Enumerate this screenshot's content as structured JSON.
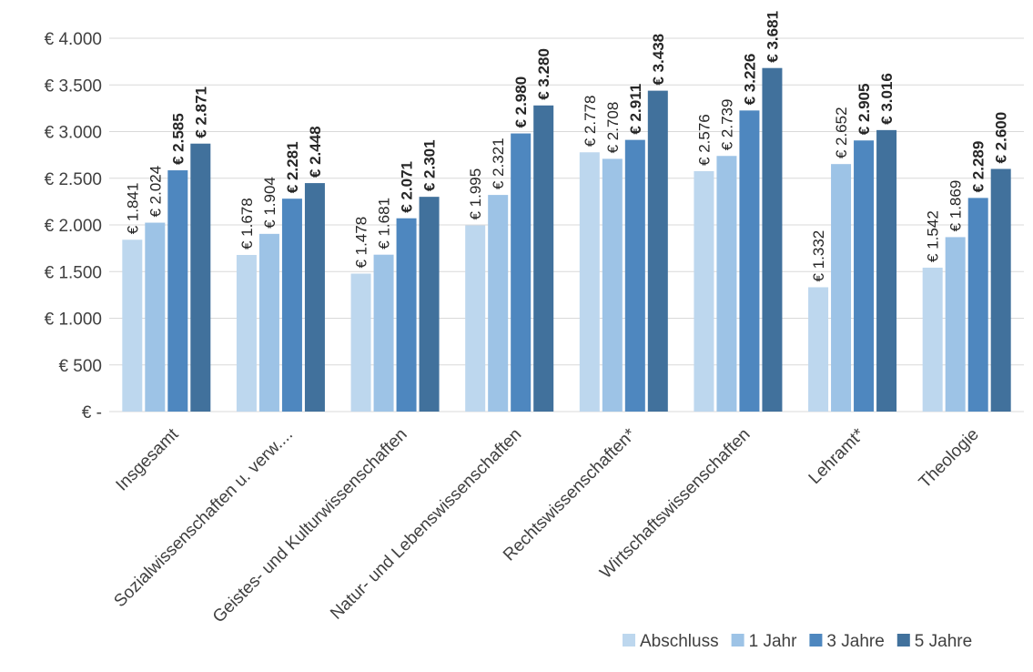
{
  "chart_data": {
    "type": "bar",
    "title": "",
    "xlabel": "",
    "ylabel": "",
    "ylim": [
      0,
      4000
    ],
    "y_ticks": [
      0,
      500,
      1000,
      1500,
      2000,
      2500,
      3000,
      3500,
      4000
    ],
    "y_tick_labels": [
      "€ -",
      "€ 500",
      "€ 1.000",
      "€ 1.500",
      "€ 2.000",
      "€ 2.500",
      "€ 3.000",
      "€ 3.500",
      "€ 4.000"
    ],
    "grid": true,
    "legend_position": "bottom-right",
    "categories": [
      "Insgesamt",
      "Sozialwissenschaften u. verw....",
      "Geistes- und Kulturwissenschaften",
      "Natur- und Lebenswissenschaften",
      "Rechtswissenschaften*",
      "Wirtschaftswissenschaften",
      "Lehramt*",
      "Theologie"
    ],
    "series": [
      {
        "name": "Abschluss",
        "color": "#BDD7EE",
        "values": [
          1841,
          1678,
          1478,
          1995,
          2778,
          2576,
          1332,
          1542
        ],
        "labels": [
          "€ 1.841",
          "€ 1.678",
          "€ 1.478",
          "€ 1.995",
          "€ 2.778",
          "€ 2.576",
          "€ 1.332",
          "€ 1.542"
        ],
        "label_bold": false
      },
      {
        "name": "1 Jahr",
        "color": "#9DC3E6",
        "values": [
          2024,
          1904,
          1681,
          2321,
          2708,
          2739,
          2652,
          1869
        ],
        "labels": [
          "€ 2.024",
          "€ 1.904",
          "€ 1.681",
          "€ 2.321",
          "€ 2.708",
          "€ 2.739",
          "€ 2.652",
          "€ 1.869"
        ],
        "label_bold": false
      },
      {
        "name": "3 Jahre",
        "color": "#4E87BF",
        "values": [
          2585,
          2281,
          2071,
          2980,
          2911,
          3226,
          2905,
          2289
        ],
        "labels": [
          "€ 2.585",
          "€ 2.281",
          "€ 2.071",
          "€ 2.980",
          "€ 2.911",
          "€ 3.226",
          "€ 2.905",
          "€ 2.289"
        ],
        "label_bold": true
      },
      {
        "name": "5 Jahre",
        "color": "#41719C",
        "values": [
          2871,
          2448,
          2301,
          3280,
          3438,
          3681,
          3016,
          2600
        ],
        "labels": [
          "€ 2.871",
          "€ 2.448",
          "€ 2.301",
          "€ 3.280",
          "€ 3.438",
          "€ 3.681",
          "€ 3.016",
          "€ 2.600"
        ],
        "label_bold": true
      }
    ]
  }
}
